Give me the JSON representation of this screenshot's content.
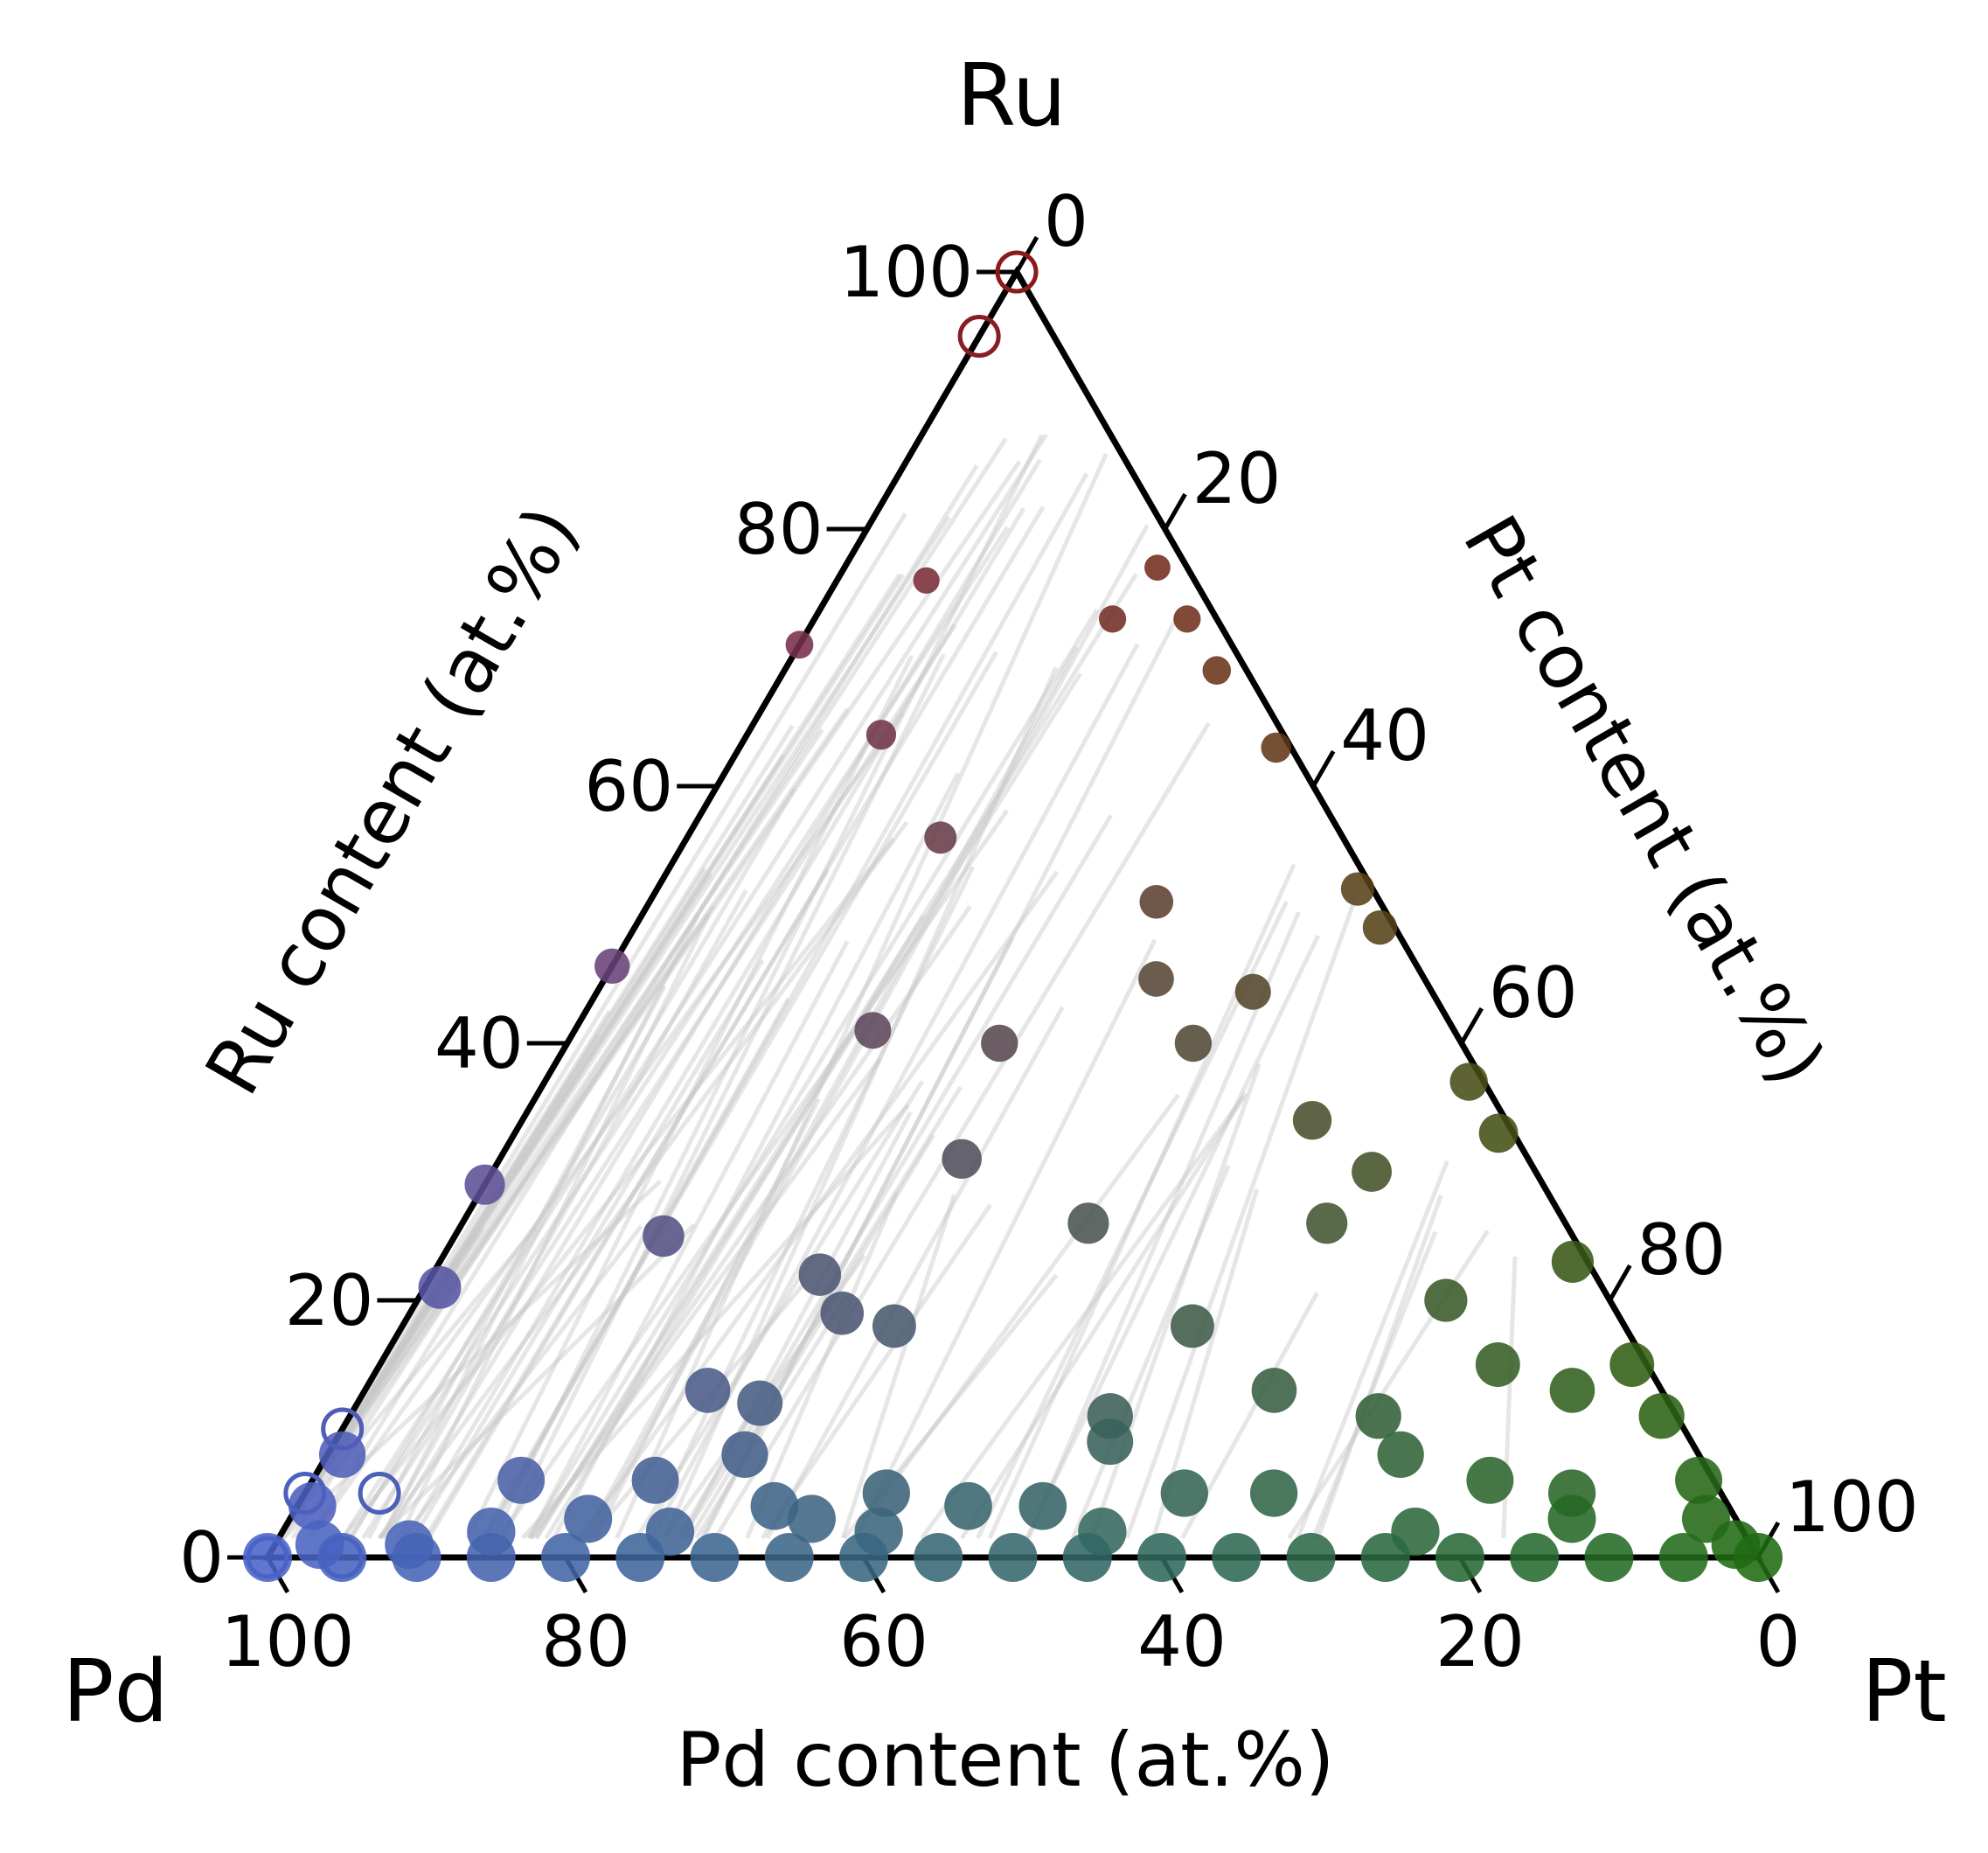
{
  "chart_data": {
    "type": "scatter",
    "subtype": "ternary",
    "corners": {
      "top": "Ru",
      "left": "Pd",
      "right": "Pt"
    },
    "axes": {
      "left": {
        "title": "Ru content (at.%)",
        "component": "Ru",
        "ticks": [
          0,
          20,
          40,
          60,
          80,
          100
        ]
      },
      "right": {
        "title": "Pt content (at.%)",
        "component": "Pt",
        "ticks": [
          0,
          20,
          40,
          60,
          80,
          100
        ]
      },
      "bottom": {
        "title": "Pd content (at.%)",
        "component": "Pd",
        "ticks": [
          100,
          80,
          60,
          40,
          20,
          0
        ]
      }
    },
    "ylim": [
      0,
      100
    ],
    "grid": false,
    "legend": "none",
    "colors": {
      "ru_rich": "#8b1a1a",
      "pt_rich": "#1f6b12",
      "pd_rich": "#4a63c8",
      "tie_line": "#c8c8c8",
      "axis": "#000000"
    },
    "series": [
      {
        "marker": "filled",
        "points": [
          {
            "ru": 77,
            "pt": 21
          },
          {
            "ru": 73,
            "pt": 25
          },
          {
            "ru": 69,
            "pt": 29
          },
          {
            "ru": 63,
            "pt": 36
          },
          {
            "ru": 52,
            "pt": 47
          },
          {
            "ru": 49,
            "pt": 50
          },
          {
            "ru": 37,
            "pt": 62
          },
          {
            "ru": 33,
            "pt": 66
          },
          {
            "ru": 23,
            "pt": 76
          },
          {
            "ru": 15,
            "pt": 84
          },
          {
            "ru": 11,
            "pt": 88
          },
          {
            "ru": 6,
            "pt": 93
          },
          {
            "ru": 3,
            "pt": 95
          },
          {
            "ru": 1,
            "pt": 98
          },
          {
            "ru": 71,
            "pt": 0
          },
          {
            "ru": 46,
            "pt": 0
          },
          {
            "ru": 29,
            "pt": 0
          },
          {
            "ru": 21,
            "pt": 1
          },
          {
            "ru": 8,
            "pt": 1
          },
          {
            "ru": 4,
            "pt": 1
          },
          {
            "ru": 76,
            "pt": 6
          },
          {
            "ru": 73,
            "pt": 20
          },
          {
            "ru": 64,
            "pt": 9
          },
          {
            "ru": 56,
            "pt": 17
          },
          {
            "ru": 51,
            "pt": 34
          },
          {
            "ru": 45,
            "pt": 37
          },
          {
            "ru": 44,
            "pt": 44
          },
          {
            "ru": 40,
            "pt": 42
          },
          {
            "ru": 41,
            "pt": 20
          },
          {
            "ru": 40,
            "pt": 29
          },
          {
            "ru": 34,
            "pt": 53
          },
          {
            "ru": 31,
            "pt": 31
          },
          {
            "ru": 30,
            "pt": 59
          },
          {
            "ru": 26,
            "pt": 42
          },
          {
            "ru": 26,
            "pt": 58
          },
          {
            "ru": 25,
            "pt": 14
          },
          {
            "ru": 22,
            "pt": 26
          },
          {
            "ru": 20,
            "pt": 69
          },
          {
            "ru": 19,
            "pt": 29
          },
          {
            "ru": 18,
            "pt": 53
          },
          {
            "ru": 18,
            "pt": 33
          },
          {
            "ru": 15,
            "pt": 75
          },
          {
            "ru": 13,
            "pt": 81
          },
          {
            "ru": 13,
            "pt": 23
          },
          {
            "ru": 13,
            "pt": 61
          },
          {
            "ru": 12,
            "pt": 27
          },
          {
            "ru": 11,
            "pt": 51
          },
          {
            "ru": 11,
            "pt": 69
          },
          {
            "ru": 9,
            "pt": 52
          },
          {
            "ru": 8,
            "pt": 72
          },
          {
            "ru": 8,
            "pt": 28
          },
          {
            "ru": 6,
            "pt": 79
          },
          {
            "ru": 6,
            "pt": 14
          },
          {
            "ru": 6,
            "pt": 23
          },
          {
            "ru": 5,
            "pt": 39
          },
          {
            "ru": 5,
            "pt": 59
          },
          {
            "ru": 5,
            "pt": 65
          },
          {
            "ru": 5,
            "pt": 85
          },
          {
            "ru": 4,
            "pt": 32
          },
          {
            "ru": 4,
            "pt": 45
          },
          {
            "ru": 4,
            "pt": 50
          },
          {
            "ru": 3,
            "pt": 20
          },
          {
            "ru": 3,
            "pt": 35
          },
          {
            "ru": 3,
            "pt": 86
          },
          {
            "ru": 2,
            "pt": 14
          },
          {
            "ru": 2,
            "pt": 26
          },
          {
            "ru": 2,
            "pt": 40
          },
          {
            "ru": 2,
            "pt": 55
          },
          {
            "ru": 2,
            "pt": 76
          },
          {
            "ru": 1,
            "pt": 3
          },
          {
            "ru": 1,
            "pt": 9
          },
          {
            "ru": 0,
            "pt": 0
          },
          {
            "ru": 0,
            "pt": 5
          },
          {
            "ru": 0,
            "pt": 10
          },
          {
            "ru": 0,
            "pt": 15
          },
          {
            "ru": 0,
            "pt": 20
          },
          {
            "ru": 0,
            "pt": 25
          },
          {
            "ru": 0,
            "pt": 30
          },
          {
            "ru": 0,
            "pt": 35
          },
          {
            "ru": 0,
            "pt": 40
          },
          {
            "ru": 0,
            "pt": 45
          },
          {
            "ru": 0,
            "pt": 50
          },
          {
            "ru": 0,
            "pt": 55
          },
          {
            "ru": 0,
            "pt": 60
          },
          {
            "ru": 0,
            "pt": 65
          },
          {
            "ru": 0,
            "pt": 70
          },
          {
            "ru": 0,
            "pt": 75
          },
          {
            "ru": 0,
            "pt": 80
          },
          {
            "ru": 0,
            "pt": 85
          },
          {
            "ru": 0,
            "pt": 90
          },
          {
            "ru": 0,
            "pt": 95
          },
          {
            "ru": 0,
            "pt": 100
          }
        ]
      },
      {
        "marker": "open",
        "points": [
          {
            "ru": 100,
            "pt": 0
          },
          {
            "ru": 95,
            "pt": 0
          },
          {
            "ru": 10,
            "pt": 0
          },
          {
            "ru": 5,
            "pt": 0
          },
          {
            "ru": 5,
            "pt": 5
          },
          {
            "ru": 0,
            "pt": 5
          },
          {
            "ru": 0,
            "pt": 0
          }
        ]
      }
    ]
  }
}
